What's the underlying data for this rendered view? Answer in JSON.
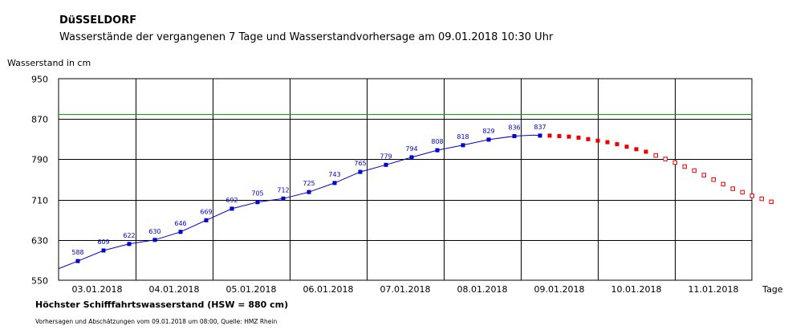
{
  "title": "DüSSELDORF",
  "subtitle": "Wasserstände der vergangenen 7 Tage und Wasserstandvorhersage am 09.01.2018 10:30 Uhr",
  "hsw_label": "Höchster Schifffahrtswasserstand (HSW = 880 cm)",
  "footnote": "Vorhersagen und Abschätzungen vom 09.01.2018 um 08:00, Quelle: HMZ Rhein",
  "chart_data": {
    "type": "line",
    "ylabel": "Wasserstand in cm",
    "xlabel": "Tage",
    "ylim": [
      550,
      950
    ],
    "yticks": [
      550,
      630,
      710,
      790,
      870,
      950
    ],
    "xlim": [
      "2018-01-02T12:00",
      "2018-01-11T12:00"
    ],
    "x_ticks": [
      "2018-01-03T00:00",
      "2018-01-04T00:00",
      "2018-01-05T00:00",
      "2018-01-06T00:00",
      "2018-01-07T00:00",
      "2018-01-08T00:00",
      "2018-01-09T00:00",
      "2018-01-10T00:00",
      "2018-01-11T00:00"
    ],
    "x_tick_labels": [
      "03.01.2018",
      "04.01.2018",
      "05.01.2018",
      "06.01.2018",
      "07.01.2018",
      "08.01.2018",
      "09.01.2018",
      "10.01.2018",
      "11.01.2018"
    ],
    "grid": true,
    "hsw": 880,
    "hsw_color": "#00aa00",
    "observed_color": "#0000cc",
    "forecast_color": "#ee0000",
    "observed_line": [
      {
        "x": "2018-01-02T12:00",
        "y": 573
      },
      {
        "x": "2018-01-02T18:00",
        "y": 588
      },
      {
        "x": "2018-01-03T02:00",
        "y": 609
      },
      {
        "x": "2018-01-03T10:00",
        "y": 622
      },
      {
        "x": "2018-01-03T18:00",
        "y": 630
      },
      {
        "x": "2018-01-04T02:00",
        "y": 646
      },
      {
        "x": "2018-01-04T10:00",
        "y": 669
      },
      {
        "x": "2018-01-04T18:00",
        "y": 692
      },
      {
        "x": "2018-01-05T02:00",
        "y": 705
      },
      {
        "x": "2018-01-05T10:00",
        "y": 712
      },
      {
        "x": "2018-01-05T18:00",
        "y": 725
      },
      {
        "x": "2018-01-06T02:00",
        "y": 743
      },
      {
        "x": "2018-01-06T10:00",
        "y": 765
      },
      {
        "x": "2018-01-06T18:00",
        "y": 779
      },
      {
        "x": "2018-01-07T02:00",
        "y": 794
      },
      {
        "x": "2018-01-07T10:00",
        "y": 808
      },
      {
        "x": "2018-01-07T18:00",
        "y": 818
      },
      {
        "x": "2018-01-08T02:00",
        "y": 829
      },
      {
        "x": "2018-01-08T10:00",
        "y": 836
      },
      {
        "x": "2018-01-08T16:00",
        "y": 838
      },
      {
        "x": "2018-01-08T18:00",
        "y": 837
      }
    ],
    "observed_points": [
      {
        "x": "2018-01-02T18:00",
        "y": 588,
        "label": "588"
      },
      {
        "x": "2018-01-03T02:00",
        "y": 609,
        "label": "609"
      },
      {
        "x": "2018-01-03T10:00",
        "y": 622,
        "label": "622"
      },
      {
        "x": "2018-01-03T18:00",
        "y": 630,
        "label": "630"
      },
      {
        "x": "2018-01-04T02:00",
        "y": 646,
        "label": "646"
      },
      {
        "x": "2018-01-04T10:00",
        "y": 669,
        "label": "669"
      },
      {
        "x": "2018-01-04T18:00",
        "y": 692,
        "label": "692"
      },
      {
        "x": "2018-01-05T02:00",
        "y": 705,
        "label": "705"
      },
      {
        "x": "2018-01-05T10:00",
        "y": 712,
        "label": "712"
      },
      {
        "x": "2018-01-05T18:00",
        "y": 725,
        "label": "725"
      },
      {
        "x": "2018-01-06T02:00",
        "y": 743,
        "label": "743"
      },
      {
        "x": "2018-01-06T10:00",
        "y": 765,
        "label": "765"
      },
      {
        "x": "2018-01-06T18:00",
        "y": 779,
        "label": "779"
      },
      {
        "x": "2018-01-07T02:00",
        "y": 794,
        "label": "794"
      },
      {
        "x": "2018-01-07T10:00",
        "y": 808,
        "label": "808"
      },
      {
        "x": "2018-01-07T18:00",
        "y": 818,
        "label": "818"
      },
      {
        "x": "2018-01-08T02:00",
        "y": 829,
        "label": "829"
      },
      {
        "x": "2018-01-08T10:00",
        "y": 836,
        "label": "836"
      },
      {
        "x": "2018-01-08T18:00",
        "y": 837,
        "label": "837"
      }
    ],
    "forecast_filled": [
      {
        "x": "2018-01-08T21:00",
        "y": 837
      },
      {
        "x": "2018-01-09T00:00",
        "y": 836
      },
      {
        "x": "2018-01-09T03:00",
        "y": 835
      },
      {
        "x": "2018-01-09T06:00",
        "y": 833
      },
      {
        "x": "2018-01-09T09:00",
        "y": 830
      },
      {
        "x": "2018-01-09T12:00",
        "y": 827
      },
      {
        "x": "2018-01-09T15:00",
        "y": 824
      },
      {
        "x": "2018-01-09T18:00",
        "y": 820
      },
      {
        "x": "2018-01-09T21:00",
        "y": 815
      },
      {
        "x": "2018-01-10T00:00",
        "y": 810
      },
      {
        "x": "2018-01-10T03:00",
        "y": 805
      }
    ],
    "forecast_open": [
      {
        "x": "2018-01-10T06:00",
        "y": 798
      },
      {
        "x": "2018-01-10T09:00",
        "y": 791
      },
      {
        "x": "2018-01-10T12:00",
        "y": 784
      },
      {
        "x": "2018-01-10T15:00",
        "y": 776
      },
      {
        "x": "2018-01-10T18:00",
        "y": 768
      },
      {
        "x": "2018-01-10T21:00",
        "y": 759
      },
      {
        "x": "2018-01-11T00:00",
        "y": 750
      },
      {
        "x": "2018-01-11T03:00",
        "y": 741
      },
      {
        "x": "2018-01-11T06:00",
        "y": 732
      },
      {
        "x": "2018-01-11T09:00",
        "y": 725
      },
      {
        "x": "2018-01-11T12:00",
        "y": 718
      },
      {
        "x": "2018-01-11T15:00",
        "y": 712
      },
      {
        "x": "2018-01-11T18:00",
        "y": 706
      }
    ]
  }
}
